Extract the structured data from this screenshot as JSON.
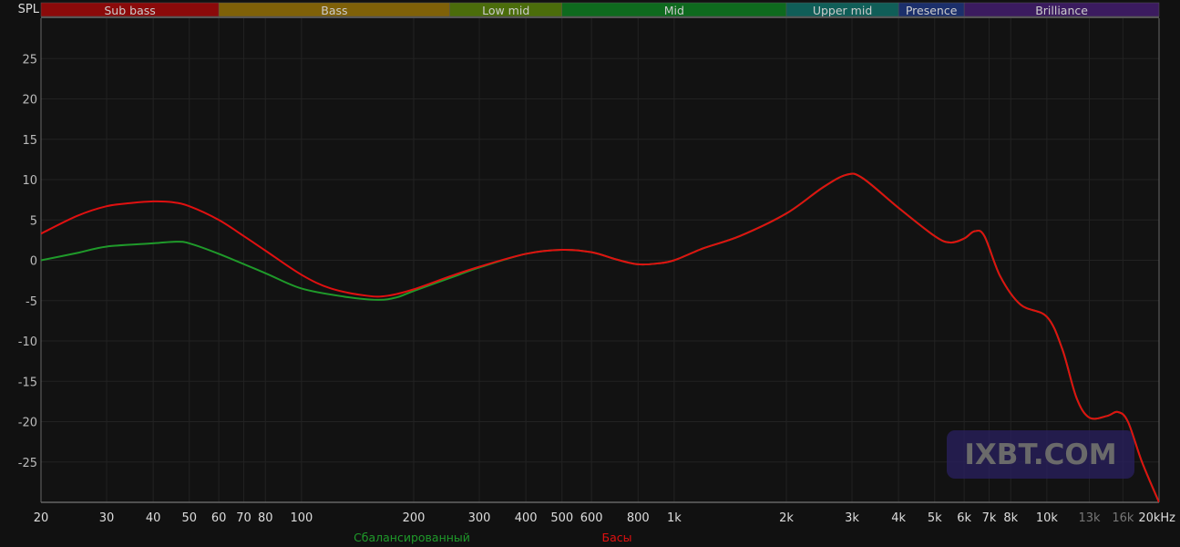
{
  "chart_data": {
    "type": "line",
    "ylabel": "SPL",
    "xunit": "kHz",
    "xscale": "log",
    "xlim": [
      20,
      20000
    ],
    "ylim": [
      -30,
      30
    ],
    "grid": true,
    "yticks": [
      25,
      20,
      15,
      10,
      5,
      0,
      -5,
      -10,
      -15,
      -20,
      -25
    ],
    "xticks": [
      {
        "v": 20,
        "l": "20"
      },
      {
        "v": 30,
        "l": "30"
      },
      {
        "v": 40,
        "l": "40"
      },
      {
        "v": 50,
        "l": "50"
      },
      {
        "v": 60,
        "l": "60"
      },
      {
        "v": 70,
        "l": "70"
      },
      {
        "v": 80,
        "l": "80"
      },
      {
        "v": 100,
        "l": "100"
      },
      {
        "v": 200,
        "l": "200"
      },
      {
        "v": 300,
        "l": "300"
      },
      {
        "v": 400,
        "l": "400"
      },
      {
        "v": 500,
        "l": "500"
      },
      {
        "v": 600,
        "l": "600"
      },
      {
        "v": 800,
        "l": "800"
      },
      {
        "v": 1000,
        "l": "1k"
      },
      {
        "v": 2000,
        "l": "2k"
      },
      {
        "v": 3000,
        "l": "3k"
      },
      {
        "v": 4000,
        "l": "4k"
      },
      {
        "v": 5000,
        "l": "5k"
      },
      {
        "v": 6000,
        "l": "6k"
      },
      {
        "v": 7000,
        "l": "7k"
      },
      {
        "v": 8000,
        "l": "8k"
      },
      {
        "v": 10000,
        "l": "10k"
      },
      {
        "v": 13000,
        "l": "13k",
        "dim": true
      },
      {
        "v": 16000,
        "l": "16k",
        "dim": true
      },
      {
        "v": 20000,
        "l": "20kHz"
      }
    ],
    "bands": [
      {
        "name": "Sub bass",
        "from": 20,
        "to": 60,
        "color": "#8b0a0a"
      },
      {
        "name": "Bass",
        "from": 60,
        "to": 250,
        "color": "#7f6108"
      },
      {
        "name": "Low mid",
        "from": 250,
        "to": 500,
        "color": "#4b6d0b"
      },
      {
        "name": "Mid",
        "from": 500,
        "to": 2000,
        "color": "#0e6a1e"
      },
      {
        "name": "Upper mid",
        "from": 2000,
        "to": 4000,
        "color": "#105e58"
      },
      {
        "name": "Presence",
        "from": 4000,
        "to": 6000,
        "color": "#1b2f6b"
      },
      {
        "name": "Brilliance",
        "from": 6000,
        "to": 20000,
        "color": "#3b1b5f"
      }
    ],
    "series": [
      {
        "name": "Сбалансированный",
        "color": "#1f9a2a",
        "points": [
          [
            20,
            0
          ],
          [
            25,
            0.9
          ],
          [
            30,
            1.7
          ],
          [
            40,
            2.1
          ],
          [
            46,
            2.3
          ],
          [
            50,
            2.1
          ],
          [
            60,
            0.8
          ],
          [
            80,
            -1.6
          ],
          [
            100,
            -3.5
          ],
          [
            130,
            -4.5
          ],
          [
            160,
            -4.9
          ],
          [
            180,
            -4.6
          ],
          [
            200,
            -3.8
          ],
          [
            250,
            -2.2
          ],
          [
            300,
            -0.9
          ],
          [
            400,
            0.8
          ],
          [
            500,
            1.3
          ],
          [
            600,
            1
          ],
          [
            700,
            0.1
          ],
          [
            800,
            -0.5
          ],
          [
            900,
            -0.4
          ],
          [
            1000,
            0
          ],
          [
            1200,
            1.5
          ],
          [
            1500,
            3
          ],
          [
            2000,
            5.8
          ],
          [
            2500,
            9
          ],
          [
            2900,
            10.6
          ],
          [
            3200,
            10.2
          ],
          [
            4000,
            6.5
          ],
          [
            5000,
            3
          ],
          [
            5500,
            2.2
          ],
          [
            6000,
            2.7
          ],
          [
            6400,
            3.6
          ],
          [
            6800,
            3
          ],
          [
            7500,
            -2
          ],
          [
            8500,
            -5.5
          ],
          [
            10000,
            -7
          ],
          [
            11000,
            -11
          ],
          [
            12000,
            -17
          ],
          [
            13000,
            -19.5
          ],
          [
            14500,
            -19.3
          ],
          [
            15500,
            -18.8
          ],
          [
            16500,
            -20
          ],
          [
            18000,
            -25
          ],
          [
            20000,
            -30
          ]
        ]
      },
      {
        "name": "Басы",
        "color": "#e01010",
        "points": [
          [
            20,
            3.3
          ],
          [
            25,
            5.5
          ],
          [
            30,
            6.7
          ],
          [
            35,
            7.1
          ],
          [
            40,
            7.3
          ],
          [
            45,
            7.2
          ],
          [
            50,
            6.7
          ],
          [
            60,
            5
          ],
          [
            70,
            3
          ],
          [
            80,
            1.2
          ],
          [
            100,
            -1.8
          ],
          [
            120,
            -3.5
          ],
          [
            150,
            -4.4
          ],
          [
            170,
            -4.4
          ],
          [
            200,
            -3.6
          ],
          [
            250,
            -2
          ],
          [
            300,
            -0.8
          ],
          [
            400,
            0.8
          ],
          [
            500,
            1.3
          ],
          [
            600,
            1
          ],
          [
            700,
            0.1
          ],
          [
            800,
            -0.5
          ],
          [
            900,
            -0.4
          ],
          [
            1000,
            0
          ],
          [
            1200,
            1.5
          ],
          [
            1500,
            3
          ],
          [
            2000,
            5.8
          ],
          [
            2500,
            9
          ],
          [
            2900,
            10.6
          ],
          [
            3200,
            10.2
          ],
          [
            4000,
            6.5
          ],
          [
            5000,
            3
          ],
          [
            5500,
            2.2
          ],
          [
            6000,
            2.7
          ],
          [
            6400,
            3.6
          ],
          [
            6800,
            3
          ],
          [
            7500,
            -2
          ],
          [
            8500,
            -5.5
          ],
          [
            10000,
            -7
          ],
          [
            11000,
            -11
          ],
          [
            12000,
            -17
          ],
          [
            13000,
            -19.5
          ],
          [
            14500,
            -19.3
          ],
          [
            15500,
            -18.8
          ],
          [
            16500,
            -20
          ],
          [
            18000,
            -25
          ],
          [
            20000,
            -30
          ]
        ]
      }
    ]
  },
  "watermark": "IXBT.COM"
}
